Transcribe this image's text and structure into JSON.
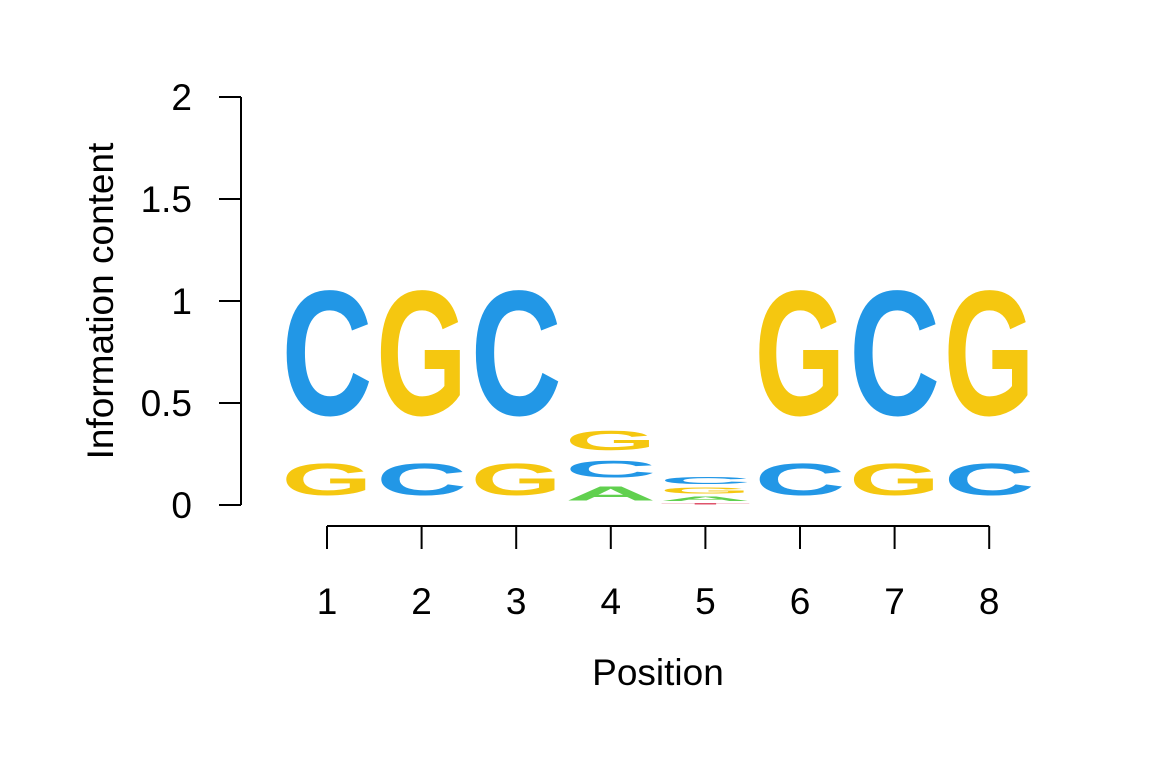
{
  "chart_data": {
    "type": "sequence-logo",
    "title": "",
    "xlabel": "Position",
    "ylabel": "Information content",
    "ylim": [
      0,
      2
    ],
    "y_ticks": [
      "0",
      "0.5",
      "1",
      "1.5",
      "2"
    ],
    "x_ticks": [
      "1",
      "2",
      "3",
      "4",
      "5",
      "6",
      "7",
      "8"
    ],
    "colors": {
      "A": "#61d04f",
      "C": "#2297e6",
      "G": "#f5c710",
      "T": "#df536b"
    },
    "positions": [
      {
        "position": "1",
        "letters": [
          {
            "letter": "G",
            "height": 0.25
          },
          {
            "letter": "C",
            "height": 0.98
          }
        ]
      },
      {
        "position": "2",
        "letters": [
          {
            "letter": "C",
            "height": 0.25
          },
          {
            "letter": "G",
            "height": 0.98
          }
        ]
      },
      {
        "position": "3",
        "letters": [
          {
            "letter": "G",
            "height": 0.25
          },
          {
            "letter": "C",
            "height": 0.98
          }
        ]
      },
      {
        "position": "4",
        "letters": [
          {
            "letter": "A",
            "height": 0.11
          },
          {
            "letter": "C",
            "height": 0.13
          },
          {
            "letter": "G",
            "height": 0.15
          }
        ]
      },
      {
        "position": "5",
        "letters": [
          {
            "letter": "T",
            "height": 0.012
          },
          {
            "letter": "A",
            "height": 0.035
          },
          {
            "letter": "G",
            "height": 0.045
          },
          {
            "letter": "C",
            "height": 0.055
          }
        ]
      },
      {
        "position": "6",
        "letters": [
          {
            "letter": "C",
            "height": 0.25
          },
          {
            "letter": "G",
            "height": 0.98
          }
        ]
      },
      {
        "position": "7",
        "letters": [
          {
            "letter": "G",
            "height": 0.25
          },
          {
            "letter": "C",
            "height": 0.98
          }
        ]
      },
      {
        "position": "8",
        "letters": [
          {
            "letter": "C",
            "height": 0.25
          },
          {
            "letter": "G",
            "height": 0.98
          }
        ]
      }
    ]
  }
}
